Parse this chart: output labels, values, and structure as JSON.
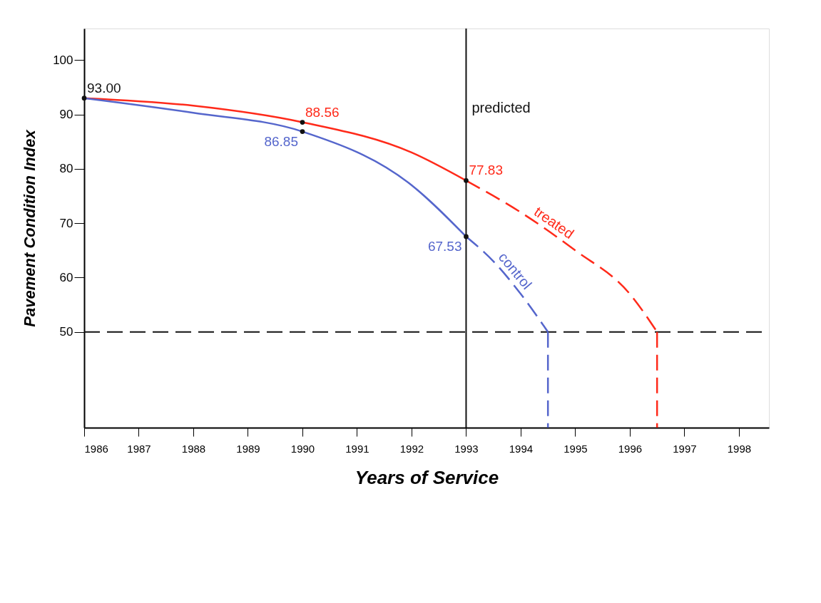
{
  "chart_data": {
    "type": "line",
    "xlabel": "Years of Service",
    "ylabel": "Pavement Condition Index",
    "xlim": [
      1986,
      1998.55
    ],
    "ylim": [
      32.4,
      105.8
    ],
    "xticks": [
      1986,
      1987,
      1988,
      1989,
      1990,
      1991,
      1992,
      1993,
      1994,
      1995,
      1996,
      1997,
      1998
    ],
    "yticks": [
      50,
      60,
      70,
      80,
      90,
      100
    ],
    "grid": false,
    "series": [
      {
        "color": "#ff2a1a",
        "line_style": "solid",
        "x": [
          1986,
          1988,
          1990,
          1992,
          1993
        ],
        "values": [
          93.0,
          91.6,
          88.56,
          83.0,
          77.83
        ],
        "value_labels": [
          null,
          null,
          "88.56",
          null,
          "77.83"
        ]
      },
      {
        "name": "treated",
        "color": "#ff2a1a",
        "line_style": "dashed",
        "x": [
          1993,
          1994,
          1995,
          1996,
          1996.5
        ],
        "values": [
          77.83,
          72.0,
          65.0,
          57.0,
          50.0
        ]
      },
      {
        "color": "#ff2a1a",
        "line_style": "dashed",
        "x": [
          1996.5,
          1996.5
        ],
        "values": [
          50.0,
          32.4
        ]
      },
      {
        "color": "#5566cc",
        "line_style": "solid",
        "x": [
          1986,
          1988,
          1990,
          1992,
          1993
        ],
        "values": [
          93.0,
          90.3,
          86.85,
          77.0,
          67.53
        ],
        "value_labels": [
          null,
          null,
          "86.85",
          null,
          "67.53"
        ]
      },
      {
        "name": "control",
        "color": "#5566cc",
        "line_style": "dashed",
        "x": [
          1993,
          1993.5,
          1994,
          1994.5
        ],
        "values": [
          67.53,
          63.0,
          57.0,
          50.0
        ]
      },
      {
        "color": "#5566cc",
        "line_style": "dashed",
        "x": [
          1994.5,
          1994.5
        ],
        "values": [
          50.0,
          32.4
        ]
      },
      {
        "type": "scatter",
        "color": "#111111",
        "marker": "circle",
        "x": [
          1986,
          1990,
          1993,
          1990,
          1993
        ],
        "values": [
          93.0,
          88.56,
          77.83,
          86.85,
          67.53
        ],
        "value_labels": [
          "93.00",
          null,
          null,
          null,
          null
        ]
      }
    ],
    "ref_lines": [
      {
        "axis": "y",
        "value": 50,
        "color": "#111111",
        "line_style": "dashed"
      },
      {
        "axis": "x",
        "value": 1993,
        "label": "predicted",
        "color": "#111111",
        "line_style": "solid"
      }
    ]
  }
}
